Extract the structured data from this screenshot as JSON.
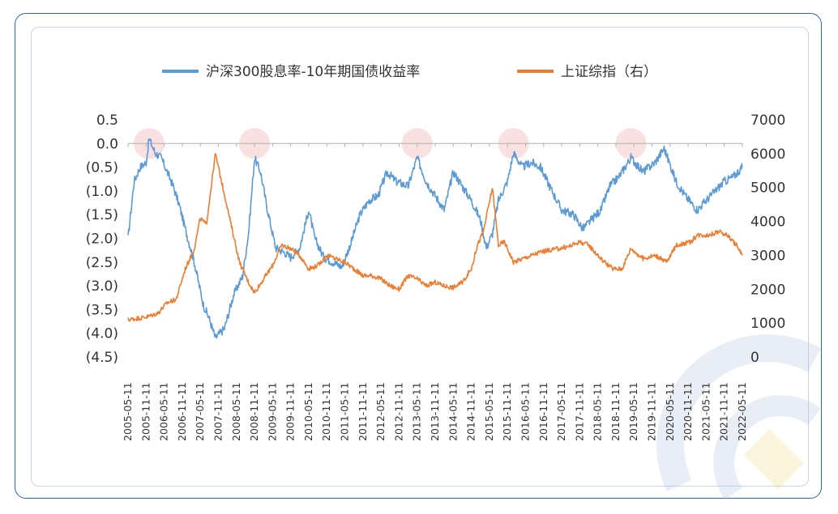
{
  "chart_data": {
    "type": "line",
    "title": "",
    "legend_position": "top",
    "grid": false,
    "y_left": {
      "range": [
        -4.5,
        0.5
      ],
      "tick_values": [
        0.5,
        0.0,
        -0.5,
        -1.0,
        -1.5,
        -2.0,
        -2.5,
        -3.0,
        -3.5,
        -4.0,
        -4.5
      ],
      "tick_labels": [
        "0.5",
        "0.0",
        "(0.5)",
        "(1.0)",
        "(1.5)",
        "(2.0)",
        "(2.5)",
        "(3.0)",
        "(3.5)",
        "(4.0)",
        "(4.5)"
      ]
    },
    "y_right": {
      "range": [
        0,
        7000
      ],
      "tick_values": [
        7000,
        6000,
        5000,
        4000,
        3000,
        2000,
        1000,
        0
      ],
      "tick_labels": [
        "7000",
        "6000",
        "5000",
        "4000",
        "3000",
        "2000",
        "1000",
        "0"
      ]
    },
    "x_tick_labels": [
      "2005-05-11",
      "2005-11-11",
      "2006-05-11",
      "2006-11-11",
      "2007-05-11",
      "2007-11-11",
      "2008-05-11",
      "2008-11-11",
      "2009-05-11",
      "2009-11-11",
      "2010-05-11",
      "2010-11-11",
      "2011-05-11",
      "2011-11-11",
      "2012-05-11",
      "2012-11-11",
      "2013-05-11",
      "2013-11-11",
      "2014-05-11",
      "2014-11-11",
      "2015-05-11",
      "2015-11-11",
      "2016-05-11",
      "2016-11-11",
      "2017-05-11",
      "2017-11-11",
      "2018-05-11",
      "2018-11-11",
      "2019-05-11",
      "2019-11-11",
      "2020-05-11",
      "2020-11-11",
      "2021-05-11",
      "2021-11-11",
      "2022-05-11"
    ],
    "highlight_dates": [
      "2005-12",
      "2008-11",
      "2013-05",
      "2016-01",
      "2019-04"
    ],
    "series": [
      {
        "name": "沪深300股息率-10年期国债收益率",
        "axis": "left",
        "color": "#5b9bd5",
        "points": [
          [
            "2005-05",
            -2.0
          ],
          [
            "2005-07",
            -0.8
          ],
          [
            "2005-09",
            -0.5
          ],
          [
            "2005-11",
            -0.4
          ],
          [
            "2005-12",
            0.1
          ],
          [
            "2006-02",
            -0.2
          ],
          [
            "2006-04",
            -0.3
          ],
          [
            "2006-06",
            -0.6
          ],
          [
            "2006-08",
            -0.9
          ],
          [
            "2006-10",
            -1.3
          ],
          [
            "2006-12",
            -1.8
          ],
          [
            "2007-03",
            -2.5
          ],
          [
            "2007-06",
            -3.4
          ],
          [
            "2007-08",
            -3.7
          ],
          [
            "2007-10",
            -4.1
          ],
          [
            "2008-01",
            -3.9
          ],
          [
            "2008-04",
            -3.2
          ],
          [
            "2008-07",
            -2.8
          ],
          [
            "2008-09",
            -1.9
          ],
          [
            "2008-11",
            -0.3
          ],
          [
            "2009-01",
            -0.6
          ],
          [
            "2009-03",
            -1.3
          ],
          [
            "2009-06",
            -2.2
          ],
          [
            "2009-09",
            -2.3
          ],
          [
            "2009-11",
            -2.4
          ],
          [
            "2010-02",
            -2.2
          ],
          [
            "2010-05",
            -1.4
          ],
          [
            "2010-07",
            -2.0
          ],
          [
            "2010-10",
            -2.4
          ],
          [
            "2011-01",
            -2.5
          ],
          [
            "2011-04",
            -2.6
          ],
          [
            "2011-07",
            -2.1
          ],
          [
            "2011-10",
            -1.5
          ],
          [
            "2012-01",
            -1.2
          ],
          [
            "2012-04",
            -1.1
          ],
          [
            "2012-07",
            -0.6
          ],
          [
            "2012-10",
            -0.8
          ],
          [
            "2013-02",
            -0.9
          ],
          [
            "2013-05",
            -0.3
          ],
          [
            "2013-08",
            -0.8
          ],
          [
            "2013-11",
            -1.1
          ],
          [
            "2014-02",
            -1.4
          ],
          [
            "2014-05",
            -0.6
          ],
          [
            "2014-08",
            -0.9
          ],
          [
            "2014-11",
            -1.2
          ],
          [
            "2015-02",
            -1.6
          ],
          [
            "2015-04",
            -2.2
          ],
          [
            "2015-06",
            -1.9
          ],
          [
            "2015-08",
            -1.2
          ],
          [
            "2015-11",
            -0.8
          ],
          [
            "2016-01",
            -0.2
          ],
          [
            "2016-04",
            -0.5
          ],
          [
            "2016-07",
            -0.4
          ],
          [
            "2016-10",
            -0.5
          ],
          [
            "2017-01",
            -0.9
          ],
          [
            "2017-05",
            -1.4
          ],
          [
            "2017-09",
            -1.5
          ],
          [
            "2017-12",
            -1.8
          ],
          [
            "2018-03",
            -1.6
          ],
          [
            "2018-06",
            -1.4
          ],
          [
            "2018-09",
            -0.9
          ],
          [
            "2018-12",
            -0.7
          ],
          [
            "2019-04",
            -0.3
          ],
          [
            "2019-08",
            -0.6
          ],
          [
            "2019-12",
            -0.4
          ],
          [
            "2020-03",
            -0.1
          ],
          [
            "2020-07",
            -0.8
          ],
          [
            "2020-10",
            -1.1
          ],
          [
            "2021-02",
            -1.4
          ],
          [
            "2021-05",
            -1.2
          ],
          [
            "2021-08",
            -1.0
          ],
          [
            "2021-11",
            -0.8
          ],
          [
            "2022-02",
            -0.7
          ],
          [
            "2022-05",
            -0.5
          ]
        ]
      },
      {
        "name": "上证综指（右）",
        "axis": "right",
        "color": "#ed7d31",
        "points": [
          [
            "2005-05",
            1100
          ],
          [
            "2005-09",
            1150
          ],
          [
            "2005-12",
            1200
          ],
          [
            "2006-03",
            1300
          ],
          [
            "2006-06",
            1600
          ],
          [
            "2006-09",
            1700
          ],
          [
            "2006-12",
            2600
          ],
          [
            "2007-03",
            3200
          ],
          [
            "2007-05",
            4100
          ],
          [
            "2007-07",
            3900
          ],
          [
            "2007-10",
            6000
          ],
          [
            "2007-12",
            5200
          ],
          [
            "2008-03",
            4000
          ],
          [
            "2008-06",
            2800
          ],
          [
            "2008-09",
            2200
          ],
          [
            "2008-11",
            1900
          ],
          [
            "2009-02",
            2300
          ],
          [
            "2009-05",
            2700
          ],
          [
            "2009-08",
            3300
          ],
          [
            "2009-11",
            3200
          ],
          [
            "2010-02",
            3000
          ],
          [
            "2010-05",
            2600
          ],
          [
            "2010-08",
            2700
          ],
          [
            "2010-11",
            3000
          ],
          [
            "2011-02",
            2900
          ],
          [
            "2011-05",
            2800
          ],
          [
            "2011-08",
            2600
          ],
          [
            "2011-11",
            2400
          ],
          [
            "2012-02",
            2400
          ],
          [
            "2012-05",
            2300
          ],
          [
            "2012-08",
            2100
          ],
          [
            "2012-11",
            2000
          ],
          [
            "2013-02",
            2400
          ],
          [
            "2013-05",
            2300
          ],
          [
            "2013-08",
            2100
          ],
          [
            "2013-11",
            2200
          ],
          [
            "2014-02",
            2100
          ],
          [
            "2014-05",
            2050
          ],
          [
            "2014-08",
            2200
          ],
          [
            "2014-11",
            2600
          ],
          [
            "2015-01",
            3300
          ],
          [
            "2015-03",
            3700
          ],
          [
            "2015-06",
            5000
          ],
          [
            "2015-08",
            3300
          ],
          [
            "2015-10",
            3400
          ],
          [
            "2016-01",
            2800
          ],
          [
            "2016-04",
            2900
          ],
          [
            "2016-07",
            3000
          ],
          [
            "2016-10",
            3100
          ],
          [
            "2017-01",
            3150
          ],
          [
            "2017-04",
            3200
          ],
          [
            "2017-07",
            3250
          ],
          [
            "2017-11",
            3400
          ],
          [
            "2018-02",
            3300
          ],
          [
            "2018-06",
            2900
          ],
          [
            "2018-10",
            2600
          ],
          [
            "2019-01",
            2600
          ],
          [
            "2019-04",
            3200
          ],
          [
            "2019-08",
            2900
          ],
          [
            "2019-12",
            3000
          ],
          [
            "2020-04",
            2800
          ],
          [
            "2020-07",
            3300
          ],
          [
            "2020-12",
            3400
          ],
          [
            "2021-02",
            3600
          ],
          [
            "2021-06",
            3600
          ],
          [
            "2021-09",
            3700
          ],
          [
            "2021-12",
            3600
          ],
          [
            "2022-03",
            3300
          ],
          [
            "2022-05",
            3000
          ]
        ]
      }
    ]
  }
}
